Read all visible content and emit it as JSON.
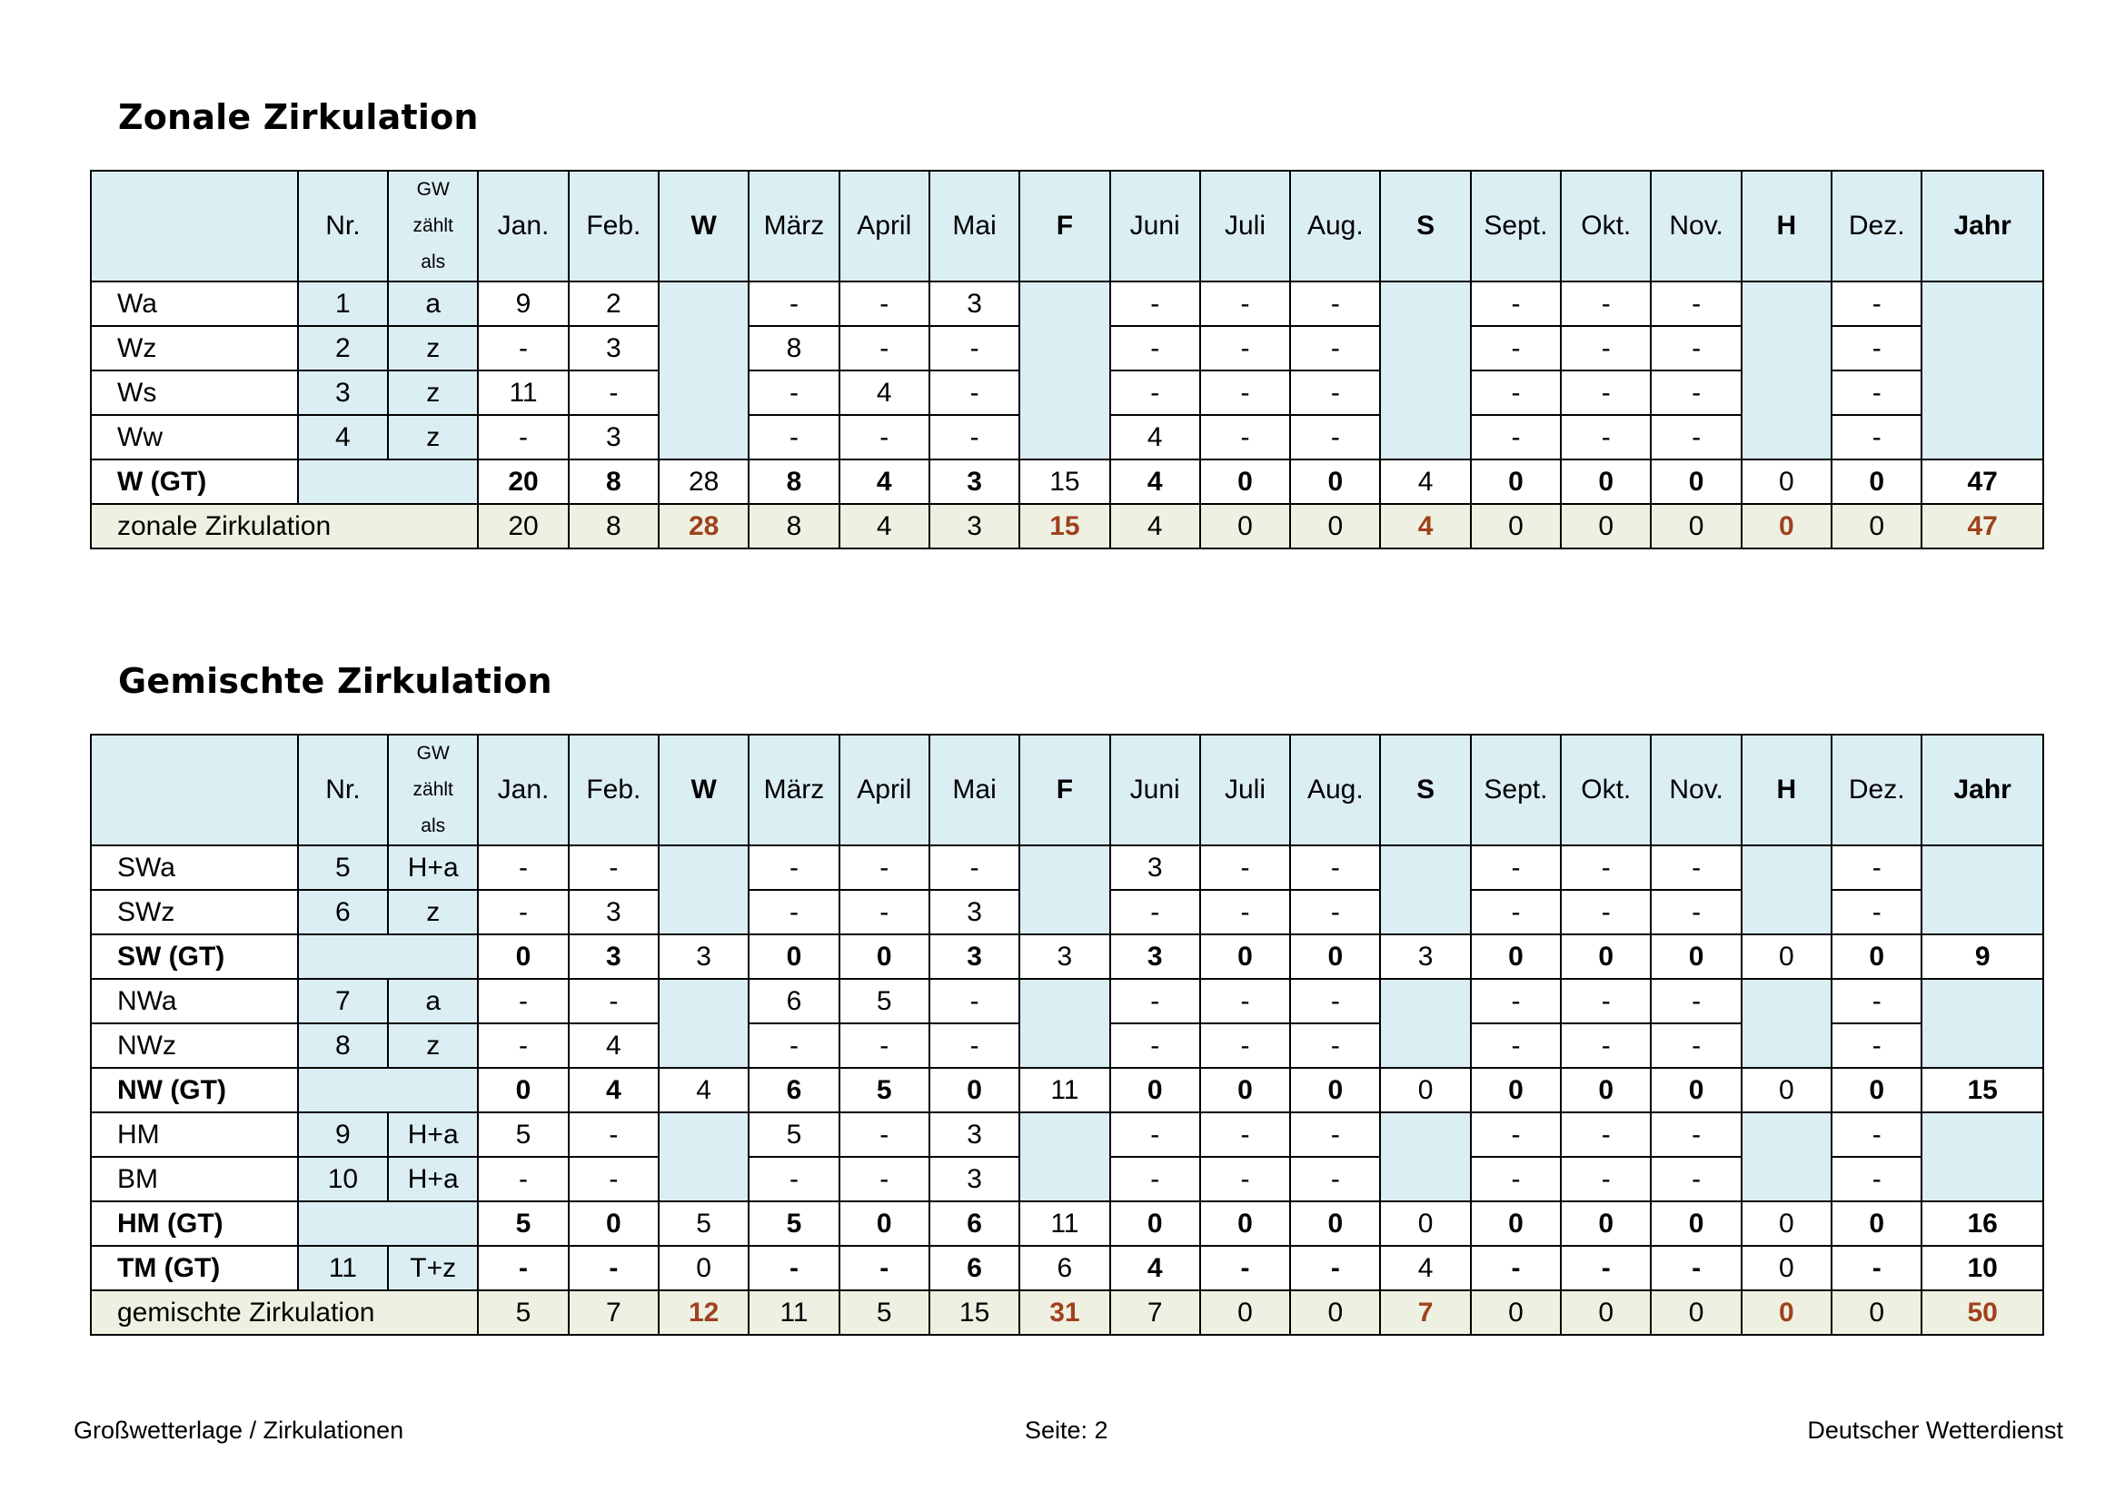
{
  "colors": {
    "header_bg": "#dbeef4",
    "sum_bg": "#eef1e1",
    "accent": "#a0411e"
  },
  "header": {
    "label": "",
    "nr": "Nr.",
    "gw": [
      "GW",
      "zählt",
      "als"
    ],
    "months": [
      "Jan.",
      "Feb.",
      "W",
      "März",
      "April",
      "Mai",
      "F",
      "Juni",
      "Juli",
      "Aug.",
      "S",
      "Sept.",
      "Okt.",
      "Nov.",
      "H",
      "Dez.",
      "Jahr"
    ]
  },
  "tables": [
    {
      "title": "Zonale Zirkulation",
      "rows": [
        {
          "type": "detail",
          "label": "Wa",
          "nr": "1",
          "gw": "a",
          "values": [
            "9",
            "2",
            "",
            "-",
            "-",
            "3",
            "",
            "-",
            "-",
            "-",
            "",
            "-",
            "-",
            "-",
            "",
            "-",
            ""
          ]
        },
        {
          "type": "detail",
          "label": "Wz",
          "nr": "2",
          "gw": "z",
          "values": [
            "-",
            "3",
            "",
            "8",
            "-",
            "-",
            "",
            "-",
            "-",
            "-",
            "",
            "-",
            "-",
            "-",
            "",
            "-",
            ""
          ]
        },
        {
          "type": "detail",
          "label": "Ws",
          "nr": "3",
          "gw": "z",
          "values": [
            "11",
            "-",
            "",
            "-",
            "4",
            "-",
            "",
            "-",
            "-",
            "-",
            "",
            "-",
            "-",
            "-",
            "",
            "-",
            ""
          ]
        },
        {
          "type": "detail",
          "label": "Ww",
          "nr": "4",
          "gw": "z",
          "values": [
            "-",
            "3",
            "",
            "-",
            "-",
            "-",
            "",
            "4",
            "-",
            "-",
            "",
            "-",
            "-",
            "-",
            "",
            "-",
            ""
          ]
        },
        {
          "type": "gt",
          "label": "W (GT)",
          "nr": "",
          "gw": "",
          "values": [
            "20",
            "8",
            "28",
            "8",
            "4",
            "3",
            "15",
            "4",
            "0",
            "0",
            "4",
            "0",
            "0",
            "0",
            "0",
            "0",
            "47"
          ]
        },
        {
          "type": "sum",
          "label": "zonale Zirkulation",
          "values": [
            "20",
            "8",
            "28",
            "8",
            "4",
            "3",
            "15",
            "4",
            "0",
            "0",
            "4",
            "0",
            "0",
            "0",
            "0",
            "0",
            "47"
          ]
        }
      ]
    },
    {
      "title": "Gemischte Zirkulation",
      "rows": [
        {
          "type": "detail",
          "label": "SWa",
          "nr": "5",
          "gw": "H+a",
          "values": [
            "-",
            "-",
            "",
            "-",
            "-",
            "-",
            "",
            "3",
            "-",
            "-",
            "",
            "-",
            "-",
            "-",
            "",
            "-",
            ""
          ]
        },
        {
          "type": "detail",
          "label": "SWz",
          "nr": "6",
          "gw": "z",
          "values": [
            "-",
            "3",
            "",
            "-",
            "-",
            "3",
            "",
            "-",
            "-",
            "-",
            "",
            "-",
            "-",
            "-",
            "",
            "-",
            ""
          ]
        },
        {
          "type": "gt",
          "label": "SW (GT)",
          "nr": "",
          "gw": "",
          "values": [
            "0",
            "3",
            "3",
            "0",
            "0",
            "3",
            "3",
            "3",
            "0",
            "0",
            "3",
            "0",
            "0",
            "0",
            "0",
            "0",
            "9"
          ]
        },
        {
          "type": "detail",
          "label": "NWa",
          "nr": "7",
          "gw": "a",
          "values": [
            "-",
            "-",
            "",
            "6",
            "5",
            "-",
            "",
            "-",
            "-",
            "-",
            "",
            "-",
            "-",
            "-",
            "",
            "-",
            ""
          ]
        },
        {
          "type": "detail",
          "label": "NWz",
          "nr": "8",
          "gw": "z",
          "values": [
            "-",
            "4",
            "",
            "-",
            "-",
            "-",
            "",
            "-",
            "-",
            "-",
            "",
            "-",
            "-",
            "-",
            "",
            "-",
            ""
          ]
        },
        {
          "type": "gt",
          "label": "NW (GT)",
          "nr": "",
          "gw": "",
          "values": [
            "0",
            "4",
            "4",
            "6",
            "5",
            "0",
            "11",
            "0",
            "0",
            "0",
            "0",
            "0",
            "0",
            "0",
            "0",
            "0",
            "15"
          ]
        },
        {
          "type": "detail",
          "label": "HM",
          "nr": "9",
          "gw": "H+a",
          "values": [
            "5",
            "-",
            "",
            "5",
            "-",
            "3",
            "",
            "-",
            "-",
            "-",
            "",
            "-",
            "-",
            "-",
            "",
            "-",
            ""
          ]
        },
        {
          "type": "detail",
          "label": "BM",
          "nr": "10",
          "gw": "H+a",
          "values": [
            "-",
            "-",
            "",
            "-",
            "-",
            "3",
            "",
            "-",
            "-",
            "-",
            "",
            "-",
            "-",
            "-",
            "",
            "-",
            ""
          ]
        },
        {
          "type": "gt",
          "label": "HM (GT)",
          "nr": "",
          "gw": "",
          "values": [
            "5",
            "0",
            "5",
            "5",
            "0",
            "6",
            "11",
            "0",
            "0",
            "0",
            "0",
            "0",
            "0",
            "0",
            "0",
            "0",
            "16"
          ]
        },
        {
          "type": "gt",
          "label": "TM (GT)",
          "nr": "11",
          "gw": "T+z",
          "values": [
            "-",
            "-",
            "0",
            "-",
            "-",
            "6",
            "6",
            "4",
            "-",
            "-",
            "4",
            "-",
            "-",
            "-",
            "0",
            "-",
            "10"
          ]
        },
        {
          "type": "sum",
          "label": "gemischte Zirkulation",
          "values": [
            "5",
            "7",
            "12",
            "11",
            "5",
            "15",
            "31",
            "7",
            "0",
            "0",
            "7",
            "0",
            "0",
            "0",
            "0",
            "0",
            "50"
          ]
        }
      ]
    }
  ],
  "footer": {
    "left": "Großwetterlage / Zirkulationen",
    "center": "Seite: 2",
    "right": "Deutscher Wetterdienst"
  }
}
